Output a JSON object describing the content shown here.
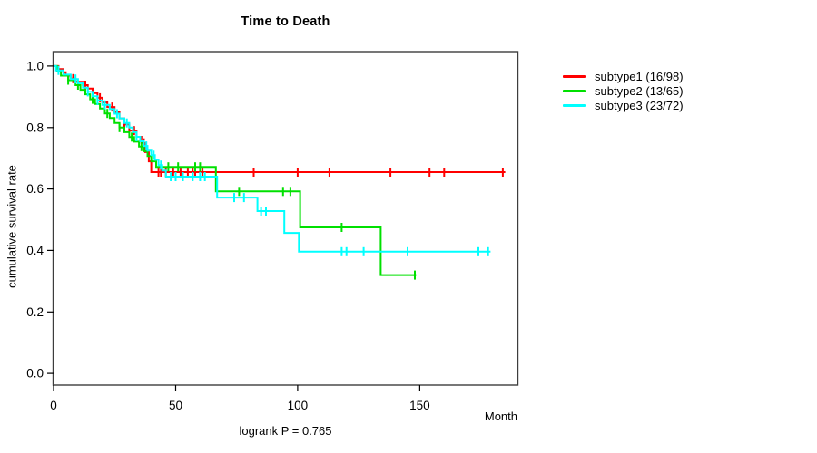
{
  "chart_data": {
    "type": "line",
    "variant": "kaplan-meier-step",
    "title": "Time to Death",
    "xlabel": "Month",
    "ylabel": "cumulative survival rate",
    "annotation": "logrank P = 0.765",
    "grid": false,
    "legend_position": "right",
    "xlim": [
      0,
      190
    ],
    "ylim": [
      -0.038,
      1.047
    ],
    "xtick_values": [
      0,
      50,
      100,
      150
    ],
    "xtick_labels": [
      "0",
      "50",
      "100",
      "150"
    ],
    "ytick_values": [
      0.0,
      0.2,
      0.4,
      0.6,
      0.8,
      1.0
    ],
    "ytick_labels": [
      "0.0",
      "0.2",
      "0.4",
      "0.6",
      "0.8",
      "1.0"
    ],
    "series": [
      {
        "name": "subtype1 (16/98)",
        "color": "#ff0000",
        "end": 185,
        "steps": [
          [
            0,
            1.0
          ],
          [
            2,
            0.99
          ],
          [
            4,
            0.98
          ],
          [
            5,
            0.969
          ],
          [
            7,
            0.959
          ],
          [
            9,
            0.949
          ],
          [
            12,
            0.938
          ],
          [
            14,
            0.927
          ],
          [
            16,
            0.912
          ],
          [
            18,
            0.897
          ],
          [
            20,
            0.882
          ],
          [
            22,
            0.867
          ],
          [
            25,
            0.85
          ],
          [
            27,
            0.83
          ],
          [
            29,
            0.81
          ],
          [
            31,
            0.79
          ],
          [
            34,
            0.77
          ],
          [
            36,
            0.75
          ],
          [
            37.5,
            0.72
          ],
          [
            39,
            0.69
          ],
          [
            40,
            0.655
          ]
        ],
        "censors": [
          8,
          13,
          19,
          24,
          29,
          33,
          37,
          43,
          44,
          46,
          49,
          52,
          55,
          57,
          58,
          61,
          82,
          100,
          113,
          138,
          154,
          160,
          184
        ]
      },
      {
        "name": "subtype2 (13/65)",
        "color": "#00e000",
        "end": 148.5,
        "steps": [
          [
            0,
            1.0
          ],
          [
            1.5,
            0.985
          ],
          [
            3,
            0.969
          ],
          [
            6,
            0.954
          ],
          [
            9,
            0.938
          ],
          [
            11,
            0.923
          ],
          [
            13,
            0.908
          ],
          [
            15,
            0.892
          ],
          [
            17,
            0.877
          ],
          [
            19,
            0.862
          ],
          [
            21,
            0.846
          ],
          [
            23,
            0.831
          ],
          [
            25,
            0.815
          ],
          [
            27,
            0.8
          ],
          [
            29,
            0.785
          ],
          [
            31,
            0.769
          ],
          [
            33,
            0.754
          ],
          [
            35,
            0.738
          ],
          [
            37,
            0.723
          ],
          [
            38.5,
            0.707
          ],
          [
            40,
            0.69
          ],
          [
            42,
            0.672
          ],
          [
            66.5,
            0.592
          ],
          [
            101,
            0.475
          ],
          [
            134,
            0.32
          ]
        ],
        "censors": [
          6,
          10,
          16,
          22,
          27,
          32,
          36,
          47,
          51,
          58,
          60,
          76,
          94,
          97,
          118,
          148
        ]
      },
      {
        "name": "subtype3 (23/72)",
        "color": "#00ffff",
        "end": 179,
        "steps": [
          [
            0,
            1.0
          ],
          [
            1,
            0.986
          ],
          [
            4,
            0.972
          ],
          [
            7,
            0.958
          ],
          [
            10,
            0.944
          ],
          [
            12,
            0.93
          ],
          [
            14,
            0.916
          ],
          [
            16,
            0.902
          ],
          [
            18,
            0.888
          ],
          [
            20,
            0.874
          ],
          [
            23,
            0.86
          ],
          [
            25,
            0.845
          ],
          [
            27,
            0.83
          ],
          [
            29,
            0.815
          ],
          [
            31,
            0.8
          ],
          [
            32.5,
            0.785
          ],
          [
            34,
            0.77
          ],
          [
            35.5,
            0.755
          ],
          [
            37,
            0.74
          ],
          [
            38.5,
            0.725
          ],
          [
            40,
            0.71
          ],
          [
            41.5,
            0.695
          ],
          [
            43,
            0.678
          ],
          [
            44.5,
            0.66
          ],
          [
            46,
            0.64
          ],
          [
            67,
            0.572
          ],
          [
            83.5,
            0.528
          ],
          [
            94.5,
            0.457
          ],
          [
            100.5,
            0.396
          ]
        ],
        "censors": [
          2,
          9,
          14,
          18,
          21,
          26,
          30,
          34,
          38,
          41,
          44,
          48,
          50,
          53,
          57,
          60,
          62,
          74,
          78,
          85,
          87,
          118,
          120,
          127,
          145,
          174,
          178
        ]
      }
    ]
  }
}
